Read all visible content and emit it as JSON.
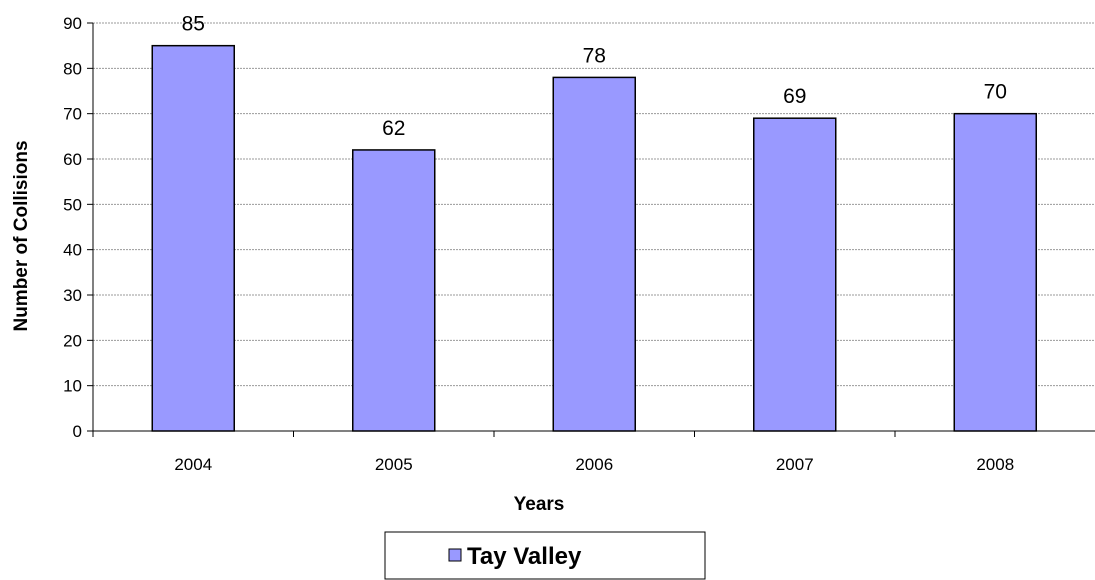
{
  "chart_data": {
    "type": "bar",
    "categories": [
      "2004",
      "2005",
      "2006",
      "2007",
      "2008"
    ],
    "series": [
      {
        "name": "Tay Valley",
        "values": [
          85,
          62,
          78,
          69,
          70
        ],
        "color": "#9999FF"
      }
    ],
    "data_labels": [
      "85",
      "62",
      "78",
      "69",
      "70"
    ],
    "title": "",
    "xlabel": "Years",
    "ylabel": "Number of Collisions",
    "ylim": [
      0,
      90
    ],
    "y_ticks": [
      0,
      10,
      20,
      30,
      40,
      50,
      60,
      70,
      80,
      90
    ],
    "grid": true,
    "legend_position": "bottom"
  }
}
